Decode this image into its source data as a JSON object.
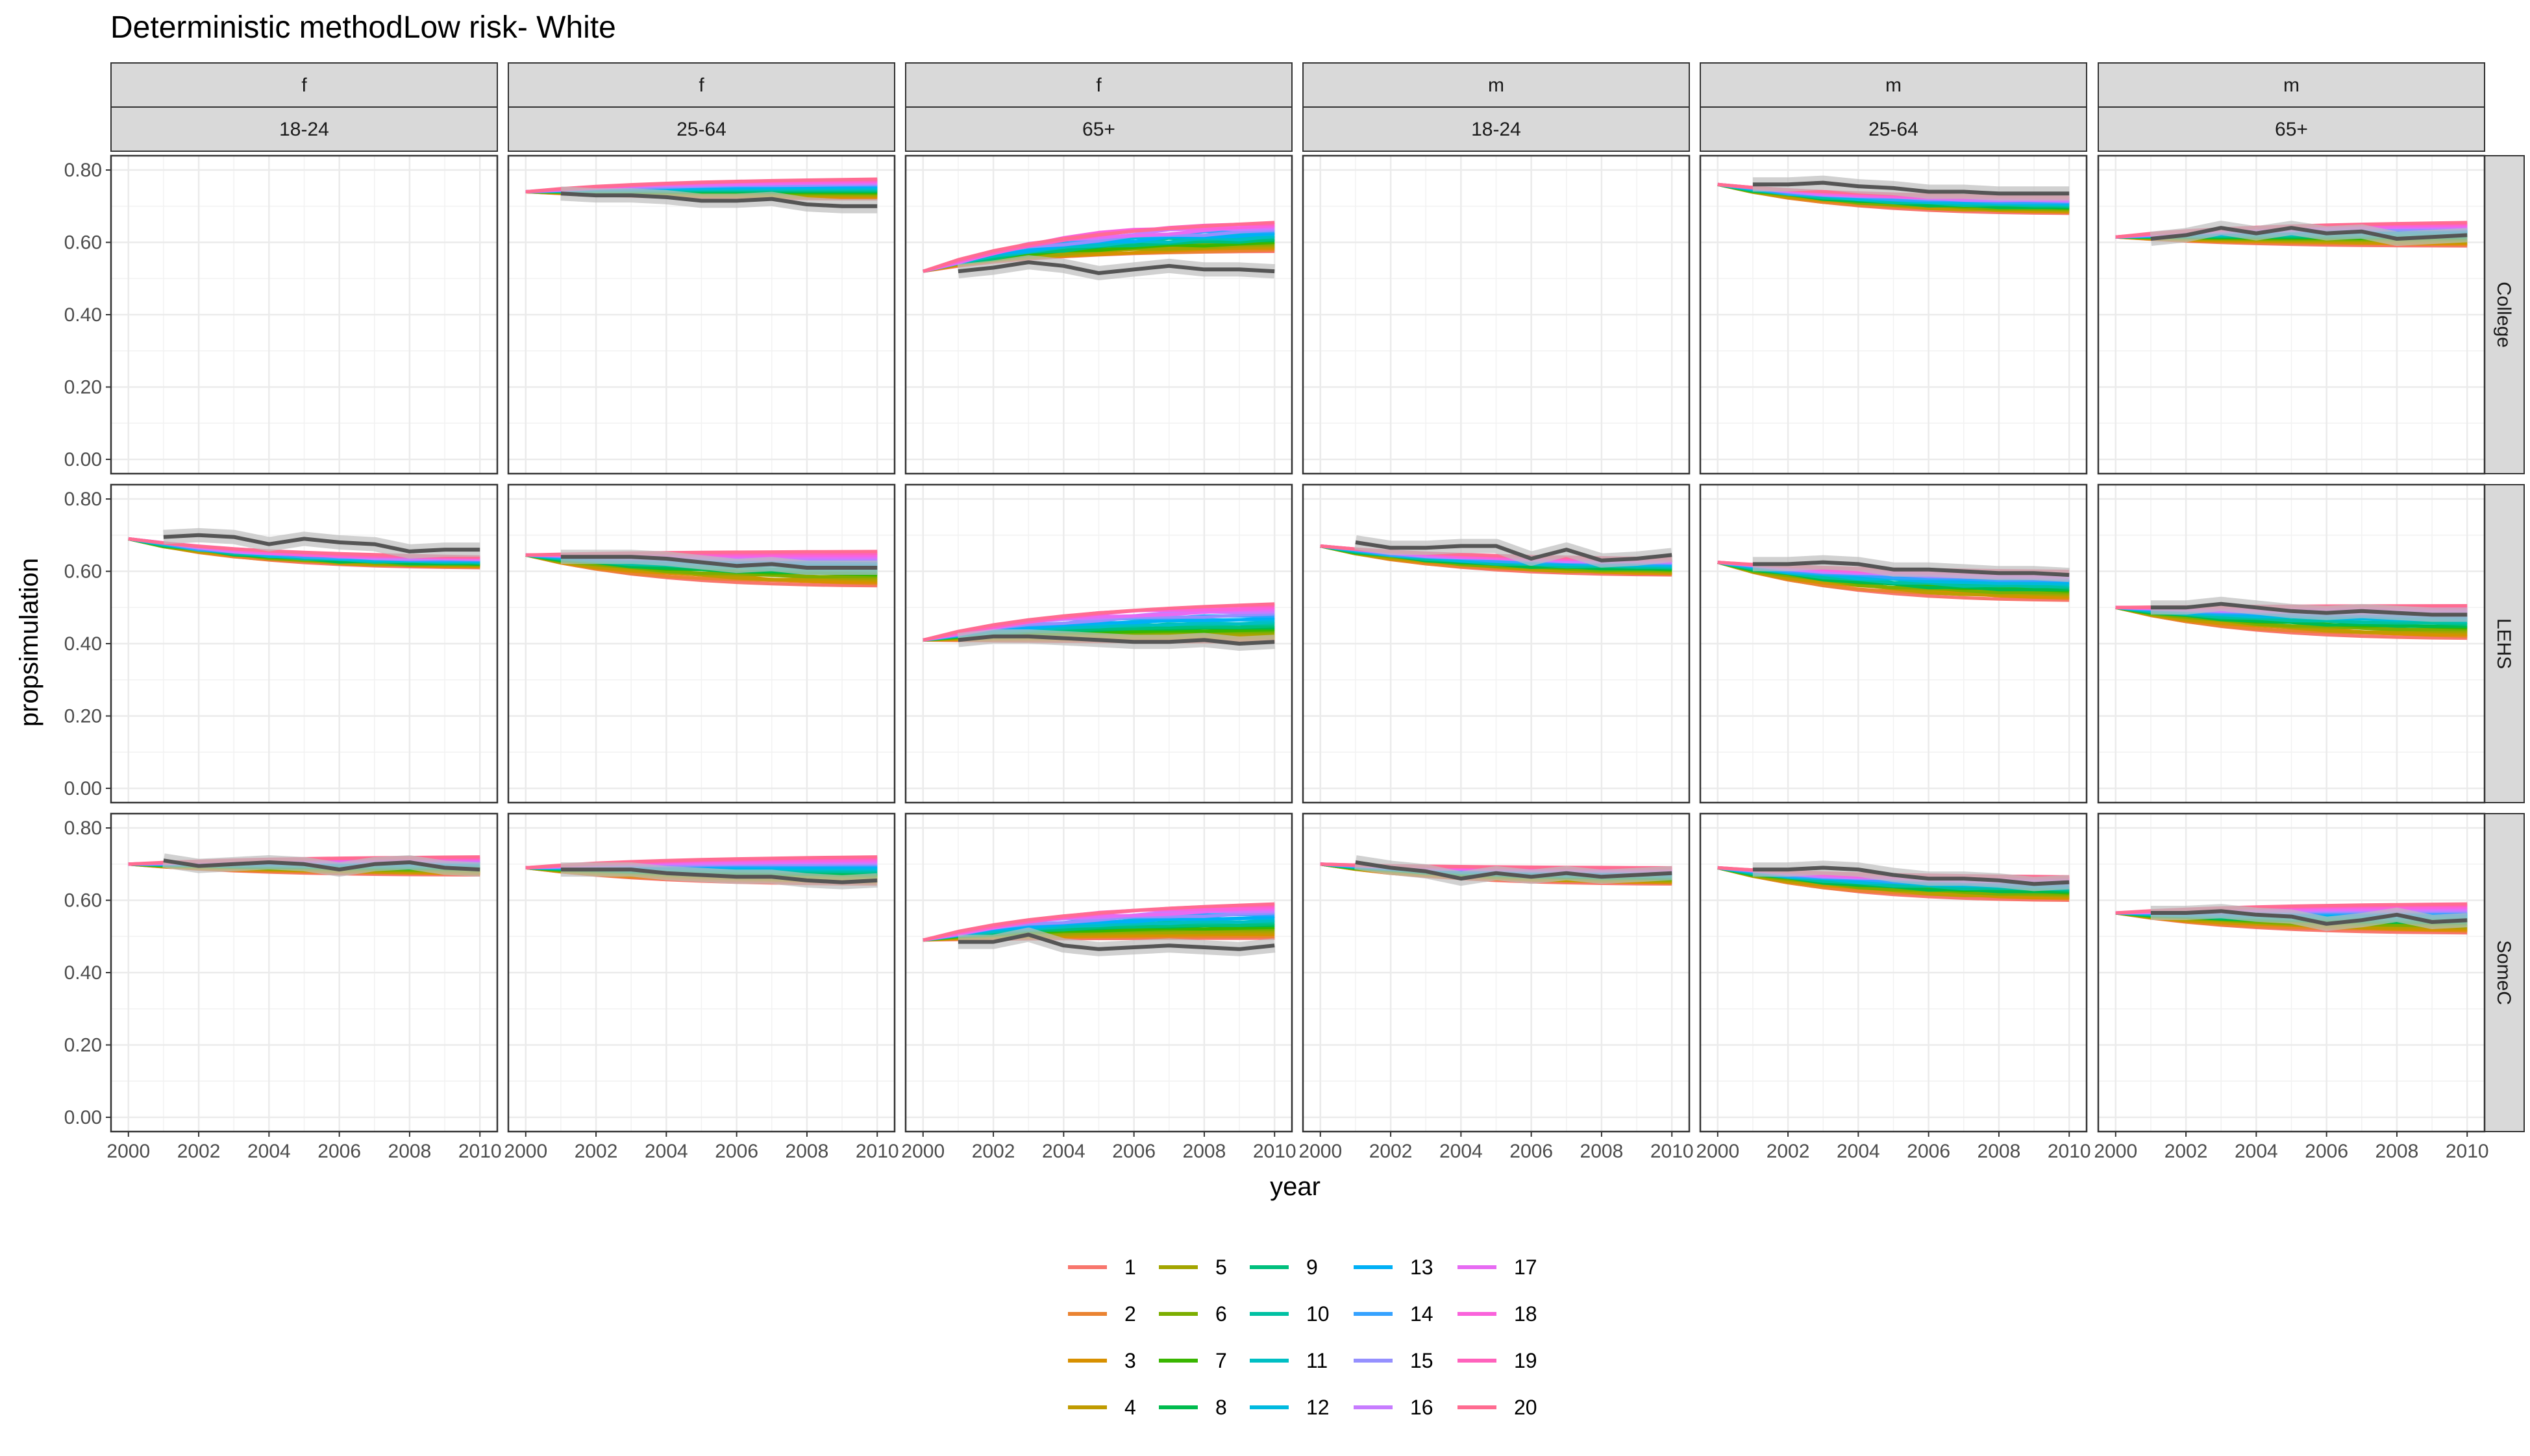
{
  "chart_data": {
    "type": "line",
    "title": "Deterministic methodLow risk- White",
    "xlabel": "year",
    "ylabel": "propsimulation",
    "xlim": [
      2000,
      2010
    ],
    "ylim": [
      0,
      0.8
    ],
    "x_ticks": [
      "2000",
      "2002",
      "2004",
      "2006",
      "2008",
      "2010"
    ],
    "y_ticks": [
      "0.00",
      "0.20",
      "0.40",
      "0.60",
      "0.80"
    ],
    "grid": true,
    "legend_position": "bottom",
    "columns": [
      {
        "sex": "f",
        "age": "18-24"
      },
      {
        "sex": "f",
        "age": "25-64"
      },
      {
        "sex": "f",
        "age": "65+"
      },
      {
        "sex": "m",
        "age": "18-24"
      },
      {
        "sex": "m",
        "age": "25-64"
      },
      {
        "sex": "m",
        "age": "65+"
      }
    ],
    "rows": [
      "College",
      "LEHS",
      "SomeC"
    ],
    "series_names": [
      "1",
      "2",
      "3",
      "4",
      "5",
      "6",
      "7",
      "8",
      "9",
      "10",
      "11",
      "12",
      "13",
      "14",
      "15",
      "16",
      "17",
      "18",
      "19",
      "20"
    ],
    "series_colors": [
      "#F8766D",
      "#EA8331",
      "#D89000",
      "#C09B00",
      "#A3A500",
      "#7CAE00",
      "#39B600",
      "#00BB4E",
      "#00BF7D",
      "#00C1A3",
      "#00BFC4",
      "#00BAE0",
      "#00B0F6",
      "#35A2FF",
      "#9590FF",
      "#C77CFF",
      "#E76BF3",
      "#FA62DB",
      "#FF62BC",
      "#FF6C91"
    ],
    "x": [
      2000,
      2001,
      2002,
      2003,
      2004,
      2005,
      2006,
      2007,
      2008,
      2009,
      2010
    ],
    "observed_x": [
      2001,
      2002,
      2003,
      2004,
      2005,
      2006,
      2007,
      2008,
      2009,
      2010
    ],
    "panels": [
      {
        "row": "College",
        "col": 0,
        "start": null,
        "end_min": null,
        "end_max": null,
        "observed": null
      },
      {
        "row": "College",
        "col": 1,
        "start": 0.74,
        "end_min": 0.72,
        "end_max": 0.775,
        "observed": [
          0.735,
          0.73,
          0.73,
          0.725,
          0.715,
          0.715,
          0.72,
          0.705,
          0.7,
          0.7
        ]
      },
      {
        "row": "College",
        "col": 2,
        "start": 0.52,
        "end_min": 0.575,
        "end_max": 0.655,
        "observed": [
          0.52,
          0.53,
          0.545,
          0.535,
          0.515,
          0.525,
          0.535,
          0.525,
          0.525,
          0.52
        ]
      },
      {
        "row": "College",
        "col": 3,
        "start": null,
        "end_min": null,
        "end_max": null,
        "observed": null
      },
      {
        "row": "College",
        "col": 4,
        "start": 0.76,
        "end_min": 0.68,
        "end_max": 0.725,
        "observed": [
          0.76,
          0.76,
          0.765,
          0.755,
          0.75,
          0.74,
          0.74,
          0.735,
          0.735,
          0.735
        ]
      },
      {
        "row": "College",
        "col": 5,
        "start": 0.615,
        "end_min": 0.59,
        "end_max": 0.655,
        "observed": [
          0.61,
          0.62,
          0.64,
          0.625,
          0.64,
          0.625,
          0.63,
          0.61,
          0.615,
          0.62
        ]
      },
      {
        "row": "LEHS",
        "col": 0,
        "start": 0.69,
        "end_min": 0.61,
        "end_max": 0.64,
        "observed": [
          0.695,
          0.7,
          0.695,
          0.675,
          0.69,
          0.68,
          0.675,
          0.655,
          0.66,
          0.66
        ]
      },
      {
        "row": "LEHS",
        "col": 1,
        "start": 0.645,
        "end_min": 0.56,
        "end_max": 0.655,
        "observed": [
          0.64,
          0.64,
          0.64,
          0.635,
          0.625,
          0.615,
          0.62,
          0.61,
          0.61,
          0.61
        ]
      },
      {
        "row": "LEHS",
        "col": 2,
        "start": 0.41,
        "end_min": 0.405,
        "end_max": 0.51,
        "observed": [
          0.41,
          0.42,
          0.42,
          0.415,
          0.41,
          0.405,
          0.405,
          0.41,
          0.4,
          0.405
        ]
      },
      {
        "row": "LEHS",
        "col": 3,
        "start": 0.67,
        "end_min": 0.59,
        "end_max": 0.635,
        "observed": [
          0.68,
          0.665,
          0.665,
          0.67,
          0.67,
          0.635,
          0.66,
          0.63,
          0.635,
          0.645
        ]
      },
      {
        "row": "LEHS",
        "col": 4,
        "start": 0.625,
        "end_min": 0.52,
        "end_max": 0.6,
        "observed": [
          0.62,
          0.62,
          0.625,
          0.62,
          0.605,
          0.605,
          0.6,
          0.595,
          0.595,
          0.59
        ]
      },
      {
        "row": "LEHS",
        "col": 5,
        "start": 0.5,
        "end_min": 0.415,
        "end_max": 0.505,
        "observed": [
          0.5,
          0.5,
          0.51,
          0.5,
          0.49,
          0.485,
          0.49,
          0.485,
          0.48,
          0.48
        ]
      },
      {
        "row": "SomeC",
        "col": 0,
        "start": 0.7,
        "end_min": 0.67,
        "end_max": 0.72,
        "observed": [
          0.71,
          0.695,
          0.7,
          0.705,
          0.7,
          0.685,
          0.7,
          0.705,
          0.69,
          0.685
        ]
      },
      {
        "row": "SomeC",
        "col": 1,
        "start": 0.69,
        "end_min": 0.645,
        "end_max": 0.72,
        "observed": [
          0.685,
          0.685,
          0.685,
          0.675,
          0.67,
          0.665,
          0.665,
          0.655,
          0.65,
          0.655
        ]
      },
      {
        "row": "SomeC",
        "col": 2,
        "start": 0.49,
        "end_min": 0.495,
        "end_max": 0.59,
        "observed": [
          0.485,
          0.485,
          0.505,
          0.475,
          0.465,
          0.47,
          0.475,
          0.47,
          0.465,
          0.475
        ]
      },
      {
        "row": "SomeC",
        "col": 3,
        "start": 0.7,
        "end_min": 0.645,
        "end_max": 0.69,
        "observed": [
          0.705,
          0.69,
          0.68,
          0.66,
          0.675,
          0.665,
          0.675,
          0.665,
          0.67,
          0.675
        ]
      },
      {
        "row": "SomeC",
        "col": 4,
        "start": 0.69,
        "end_min": 0.6,
        "end_max": 0.665,
        "observed": [
          0.685,
          0.685,
          0.69,
          0.685,
          0.67,
          0.66,
          0.66,
          0.655,
          0.645,
          0.65
        ]
      },
      {
        "row": "SomeC",
        "col": 5,
        "start": 0.565,
        "end_min": 0.51,
        "end_max": 0.59,
        "observed": [
          0.565,
          0.565,
          0.57,
          0.56,
          0.555,
          0.535,
          0.545,
          0.56,
          0.54,
          0.545
        ]
      }
    ]
  }
}
